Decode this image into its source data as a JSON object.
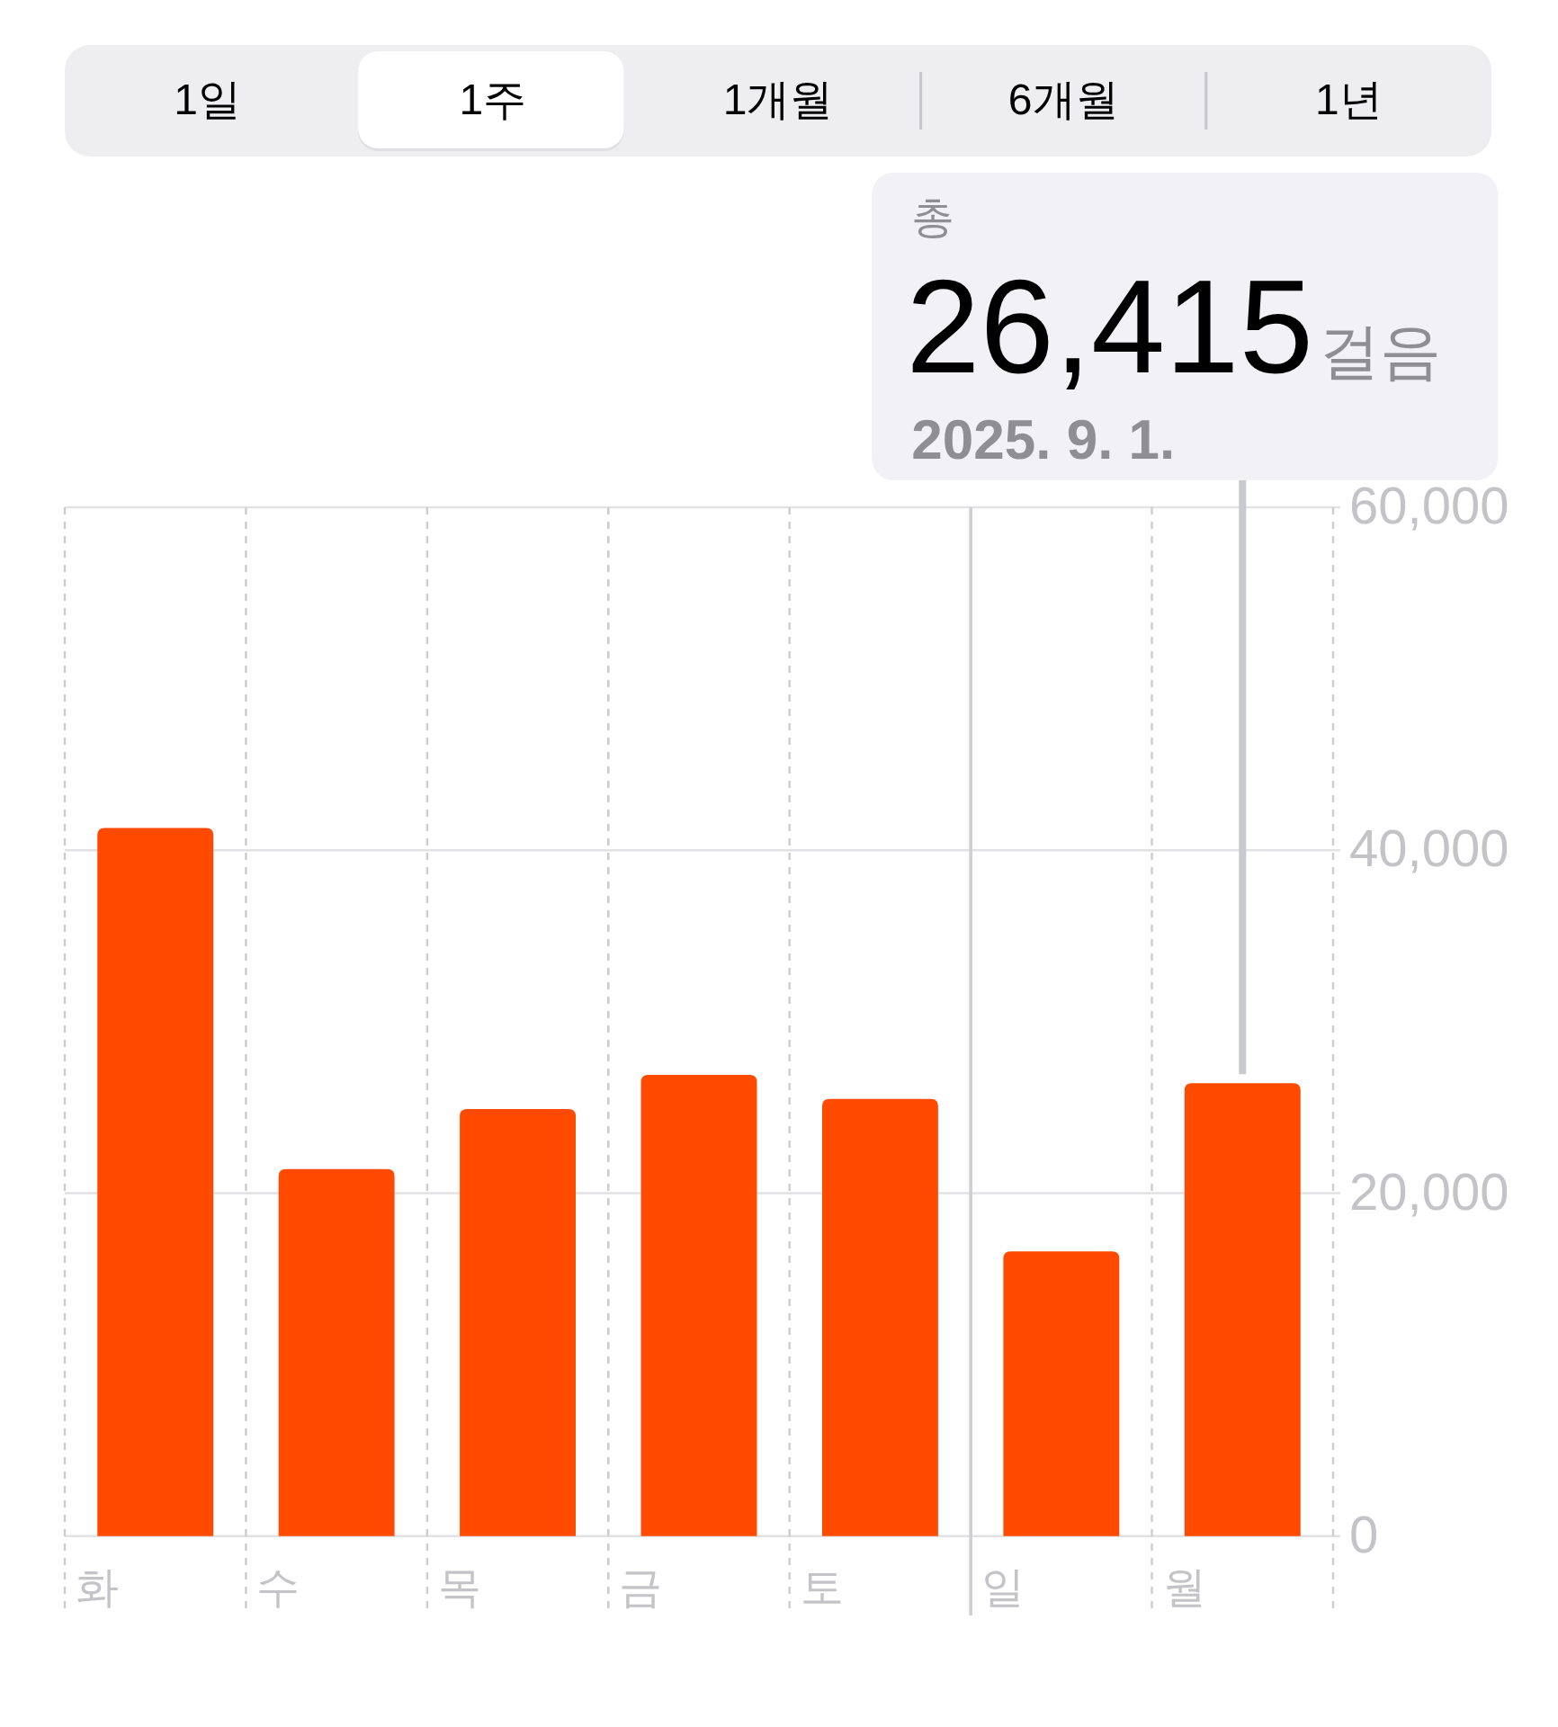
{
  "chart_data": {
    "type": "bar",
    "categories": [
      "화",
      "수",
      "목",
      "금",
      "토",
      "일",
      "월"
    ],
    "values": [
      41300,
      21400,
      24900,
      26900,
      25500,
      16600,
      26415
    ],
    "color": "#ff4a00",
    "ylim": [
      0,
      60000
    ],
    "yticks": [
      0,
      {
        "value": 20000,
        "label": "20,000"
      },
      {
        "value": 40000,
        "label": "40,000"
      },
      {
        "value": 60000,
        "label": "60,000"
      }
    ],
    "grid": true,
    "ref_lines": [
      {
        "axis": "x",
        "value": "일",
        "color": "#cfcfd4",
        "line_style": "solid"
      }
    ],
    "annotations": [
      "1일",
      "1주",
      "1개월",
      "6개월",
      "1년",
      "총",
      "26,415",
      "걸음",
      "2025. 9. 1."
    ]
  }
}
